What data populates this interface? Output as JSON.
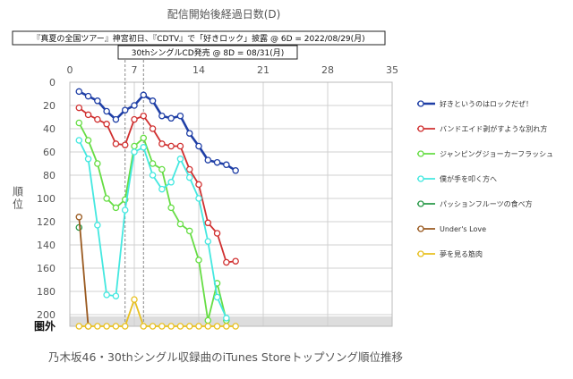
{
  "chart_data": {
    "type": "line",
    "title": "乃木坂46・30thシングル収録曲のiTunes Storeトップソング順位推移",
    "xlabel": "配信開始後経過日数(D)",
    "ylabel": "順位",
    "xlim": [
      0,
      35
    ],
    "x_ticks": [
      "0",
      "7",
      "14",
      "21",
      "28",
      "35"
    ],
    "ylim": [
      0,
      210
    ],
    "y_reversed": true,
    "y_ticks": [
      "0",
      "20",
      "40",
      "60",
      "80",
      "100",
      "120",
      "140",
      "160",
      "180",
      "200"
    ],
    "out_of_chart_label": "圏外",
    "out_of_chart_value": 210,
    "grid": true,
    "legend_position": "right",
    "annotations": [
      {
        "text": "『真夏の全国ツアー』神宮初日、『CDTV』で「好きロック」披露 @ 6D = 2022/08/29(月)",
        "x": 6
      },
      {
        "text": "30thシングルCD発売 @ 8D = 08/31(月)",
        "x": 8
      }
    ],
    "series": [
      {
        "name": "好きというのはロックだぜ！",
        "color": "#1f3fa6",
        "x": [
          1,
          2,
          3,
          4,
          5,
          6,
          7,
          8,
          9,
          10,
          11,
          12,
          13,
          14,
          15,
          16,
          17,
          18
        ],
        "y": [
          8,
          12,
          16,
          25,
          32,
          24,
          20,
          11,
          16,
          29,
          31,
          29,
          44,
          55,
          67,
          69,
          71,
          76
        ]
      },
      {
        "name": "バンドエイド剥がすような別れ方",
        "color": "#d03030",
        "x": [
          1,
          2,
          3,
          4,
          5,
          6,
          7,
          8,
          9,
          10,
          11,
          12,
          13,
          14,
          15,
          16,
          17,
          18
        ],
        "y": [
          22,
          28,
          32,
          36,
          53,
          54,
          32,
          29,
          40,
          53,
          55,
          55,
          75,
          88,
          121,
          130,
          155,
          154
        ]
      },
      {
        "name": "ジャンピングジョーカーフラッシュ",
        "color": "#66dd44",
        "x": [
          1,
          2,
          3,
          4,
          5,
          6,
          7,
          8,
          9,
          10,
          11,
          12,
          13,
          14,
          15,
          16,
          17
        ],
        "y": [
          35,
          50,
          70,
          100,
          108,
          101,
          55,
          48,
          70,
          75,
          108,
          122,
          128,
          153,
          205,
          173,
          205
        ]
      },
      {
        "name": "僕が手を叩く方へ",
        "color": "#44e8e0",
        "x": [
          1,
          2,
          3,
          4,
          5,
          6,
          7,
          8,
          9,
          10,
          11,
          12,
          13,
          14,
          15,
          16,
          17
        ],
        "y": [
          50,
          66,
          123,
          183,
          184,
          110,
          60,
          56,
          80,
          92,
          86,
          66,
          82,
          100,
          137,
          185,
          203
        ]
      },
      {
        "name": "パッションフルーツの食べ方",
        "color": "#2a9a4a",
        "x": [
          1
        ],
        "y": [
          125
        ]
      },
      {
        "name": "Under's Love",
        "color": "#9a5a20",
        "x": [
          1,
          2
        ],
        "y": [
          116,
          210
        ]
      },
      {
        "name": "夢を見る筋肉",
        "color": "#e8c020",
        "x": [
          1,
          2,
          3,
          4,
          5,
          6,
          7,
          8,
          9,
          10,
          11,
          12,
          13,
          14,
          15,
          16,
          17,
          18
        ],
        "y": [
          210,
          210,
          210,
          210,
          210,
          210,
          187,
          210,
          210,
          210,
          210,
          210,
          210,
          210,
          210,
          210,
          210,
          210
        ]
      }
    ]
  }
}
